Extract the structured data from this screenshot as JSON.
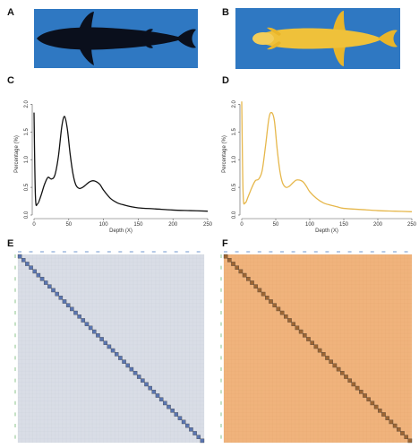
{
  "panels": {
    "a": {
      "letter": "A",
      "description_color": "#0a0f1c",
      "background": "#2f78c2"
    },
    "b": {
      "letter": "B",
      "description_color": "#e9b52a",
      "background": "#2f78c2"
    },
    "c": {
      "letter": "C"
    },
    "d": {
      "letter": "D"
    },
    "e": {
      "letter": "E",
      "matrix_color": "#5a75b0",
      "background": "#d9dde6"
    },
    "f": {
      "letter": "F",
      "matrix_color": "#9c6533",
      "background": "#f0b37c"
    }
  },
  "chart_data": [
    {
      "type": "line",
      "panel": "C",
      "color": "#111111",
      "xlabel": "Depth (X)",
      "ylabel": "Percentage (%)",
      "xlim": [
        0,
        250
      ],
      "ylim": [
        0,
        2.2
      ],
      "xticks": [
        "0",
        "50",
        "100",
        "150",
        "200",
        "250"
      ],
      "yticks": [
        "0.0",
        "0.5",
        "1.0",
        "1.5",
        "2.0"
      ],
      "x": [
        0,
        2,
        5,
        10,
        15,
        20,
        25,
        30,
        35,
        40,
        44,
        48,
        52,
        56,
        60,
        65,
        70,
        75,
        80,
        85,
        90,
        95,
        100,
        110,
        120,
        130,
        140,
        150,
        175,
        200,
        225,
        250
      ],
      "y": [
        1.85,
        0.35,
        0.2,
        0.35,
        0.55,
        0.68,
        0.65,
        0.72,
        1.05,
        1.6,
        1.78,
        1.55,
        1.1,
        0.75,
        0.55,
        0.48,
        0.5,
        0.55,
        0.6,
        0.62,
        0.6,
        0.55,
        0.45,
        0.3,
        0.22,
        0.18,
        0.15,
        0.13,
        0.11,
        0.09,
        0.08,
        0.07
      ]
    },
    {
      "type": "line",
      "panel": "D",
      "color": "#e6b74b",
      "xlabel": "Depth (X)",
      "ylabel": "Percentage (%)",
      "xlim": [
        0,
        250
      ],
      "ylim": [
        0,
        2.2
      ],
      "xticks": [
        "0",
        "50",
        "100",
        "150",
        "200",
        "250"
      ],
      "yticks": [
        "0.0",
        "0.5",
        "1.0",
        "1.5",
        "2.0"
      ],
      "x": [
        0,
        2,
        5,
        10,
        15,
        20,
        25,
        30,
        35,
        40,
        44,
        48,
        52,
        56,
        60,
        65,
        70,
        75,
        80,
        85,
        90,
        95,
        100,
        110,
        120,
        130,
        140,
        150,
        175,
        200,
        225,
        250
      ],
      "y": [
        2.05,
        0.4,
        0.22,
        0.35,
        0.5,
        0.62,
        0.65,
        0.8,
        1.25,
        1.75,
        1.85,
        1.7,
        1.2,
        0.8,
        0.58,
        0.5,
        0.52,
        0.58,
        0.63,
        0.63,
        0.6,
        0.52,
        0.42,
        0.3,
        0.22,
        0.18,
        0.15,
        0.12,
        0.1,
        0.08,
        0.07,
        0.06
      ]
    }
  ]
}
